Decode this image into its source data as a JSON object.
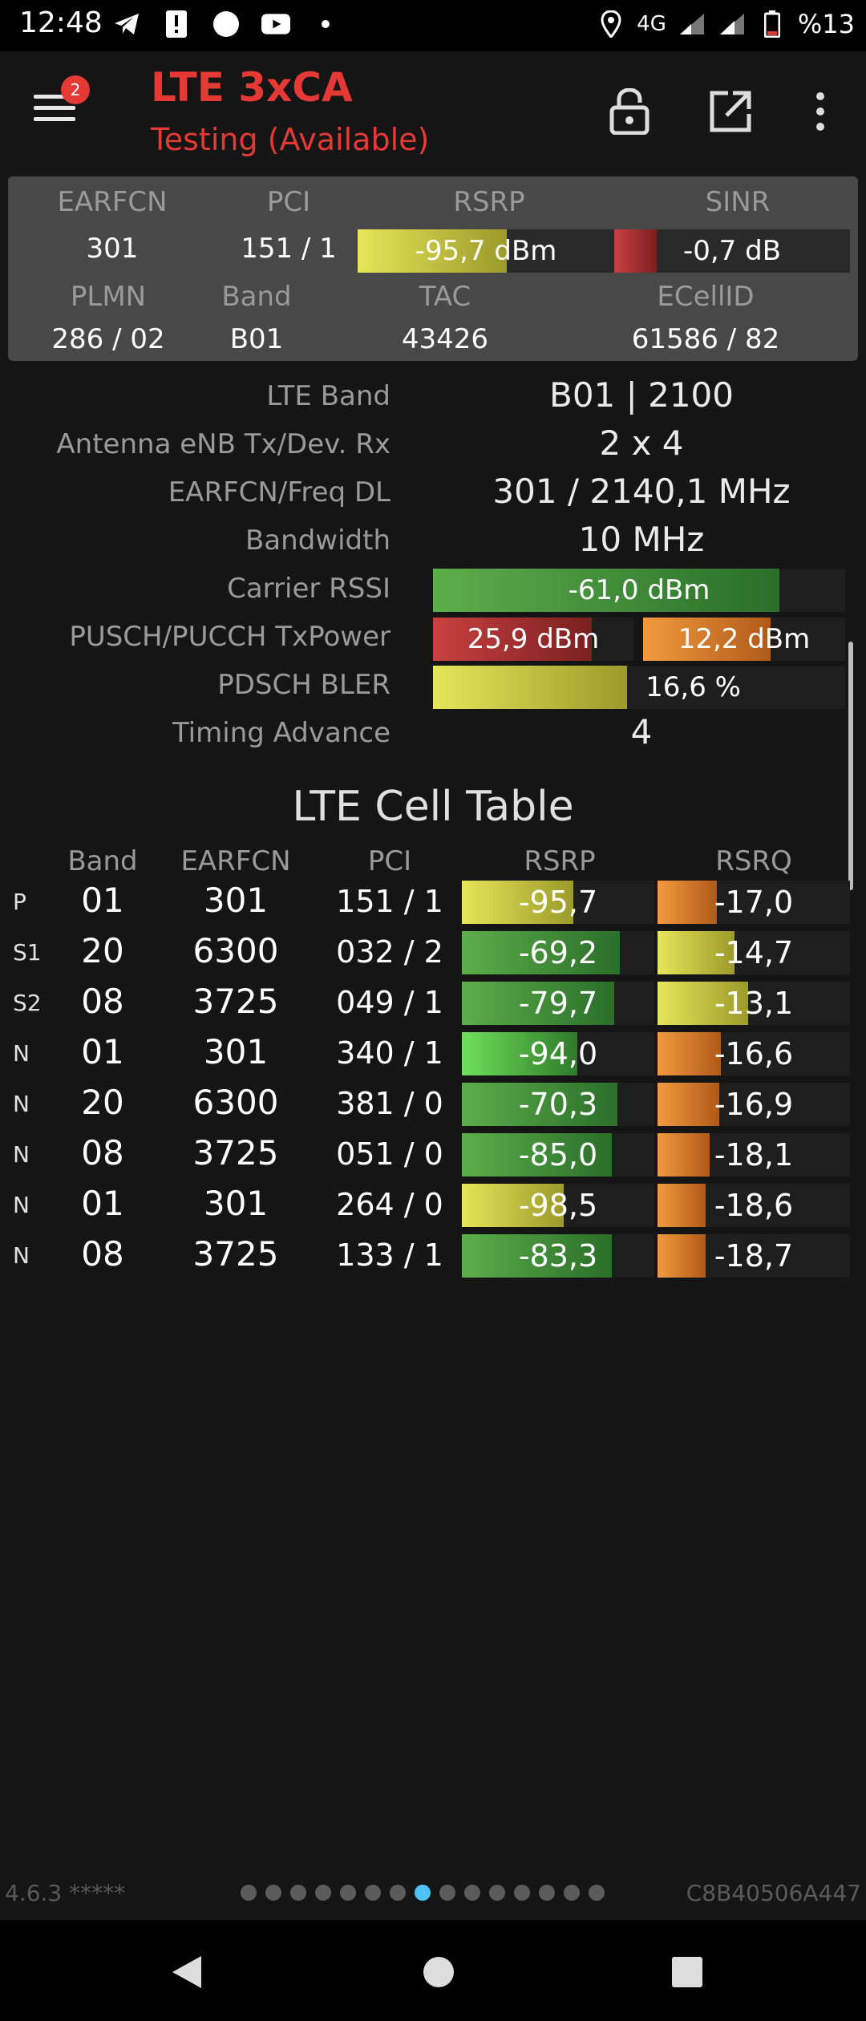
{
  "status_bar": {
    "time": "12:48",
    "network": "4G",
    "battery": "%13"
  },
  "app_bar": {
    "badge_count": "2",
    "title": "LTE 3xCA",
    "subtitle": "Testing (Available)"
  },
  "summary": {
    "headers": {
      "earfcn": "EARFCN",
      "pci": "PCI",
      "rsrp": "RSRP",
      "sinr": "SINR",
      "plmn": "PLMN",
      "band": "Band",
      "tac": "TAC",
      "ecellid": "ECellID"
    },
    "values": {
      "earfcn": "301",
      "pci": "151 / 1",
      "rsrp": "-95,7 dBm",
      "sinr": "-0,7 dB",
      "plmn": "286 / 02",
      "band": "B01",
      "tac": "43426",
      "ecellid": "61586 / 82"
    },
    "rsrp_level": 0.58,
    "sinr_level": 0.18
  },
  "details": {
    "lte_band": {
      "label": "LTE Band",
      "value": "B01 | 2100"
    },
    "antenna": {
      "label": "Antenna eNB Tx/Dev. Rx",
      "value": "2 x 4"
    },
    "earfcn_freq": {
      "label": "EARFCN/Freq DL",
      "value": "301 / 2140,1 MHz"
    },
    "bandwidth": {
      "label": "Bandwidth",
      "value": "10 MHz"
    },
    "carrier_rssi": {
      "label": "Carrier RSSI",
      "value": "-61,0 dBm",
      "level": 0.84
    },
    "txpower": {
      "label": "PUSCH/PUCCH TxPower",
      "pusch": "25,9 dBm",
      "pusch_level": 0.79,
      "pucch": "12,2 dBm",
      "pucch_level": 0.63
    },
    "pdsch_bler": {
      "label": "PDSCH BLER",
      "value": "16,6 %",
      "level": 0.47
    },
    "timing_advance": {
      "label": "Timing Advance",
      "value": "4"
    }
  },
  "cell_table": {
    "title": "LTE Cell Table",
    "headers": {
      "band": "Band",
      "earfcn": "EARFCN",
      "pci": "PCI",
      "rsrp": "RSRP",
      "rsrq": "RSRQ"
    },
    "rows": [
      {
        "type": "P",
        "band": "01",
        "earfcn": "301",
        "pci": "151 / 1",
        "rsrp": "-95,7",
        "rsrp_level": 0.58,
        "rsrp_color": "yellow",
        "rsrq": "-17,0",
        "rsrq_level": 0.31,
        "rsrq_color": "orange"
      },
      {
        "type": "S1",
        "band": "20",
        "earfcn": "6300",
        "pci": "032 / 2",
        "rsrp": "-69,2",
        "rsrp_level": 0.82,
        "rsrp_color": "green",
        "rsrq": "-14,7",
        "rsrq_level": 0.4,
        "rsrq_color": "yellow"
      },
      {
        "type": "S2",
        "band": "08",
        "earfcn": "3725",
        "pci": "049 / 1",
        "rsrp": "-79,7",
        "rsrp_level": 0.79,
        "rsrp_color": "green",
        "rsrq": "-13,1",
        "rsrq_level": 0.47,
        "rsrq_color": "yellow"
      },
      {
        "type": "N",
        "band": "01",
        "earfcn": "301",
        "pci": "340 / 1",
        "rsrp": "-94,0",
        "rsrp_level": 0.6,
        "rsrp_color": "lime",
        "rsrq": "-16,6",
        "rsrq_level": 0.33,
        "rsrq_color": "orange"
      },
      {
        "type": "N",
        "band": "20",
        "earfcn": "6300",
        "pci": "381 / 0",
        "rsrp": "-70,3",
        "rsrp_level": 0.81,
        "rsrp_color": "green",
        "rsrq": "-16,9",
        "rsrq_level": 0.32,
        "rsrq_color": "orange"
      },
      {
        "type": "N",
        "band": "08",
        "earfcn": "3725",
        "pci": "051 / 0",
        "rsrp": "-85,0",
        "rsrp_level": 0.78,
        "rsrp_color": "green",
        "rsrq": "-18,1",
        "rsrq_level": 0.27,
        "rsrq_color": "orange"
      },
      {
        "type": "N",
        "band": "01",
        "earfcn": "301",
        "pci": "264 / 0",
        "rsrp": "-98,5",
        "rsrp_level": 0.53,
        "rsrp_color": "yellow",
        "rsrq": "-18,6",
        "rsrq_level": 0.25,
        "rsrq_color": "orange"
      },
      {
        "type": "N",
        "band": "08",
        "earfcn": "3725",
        "pci": "133 / 1",
        "rsrp": "-83,3",
        "rsrp_level": 0.78,
        "rsrp_color": "green",
        "rsrq": "-18,7",
        "rsrq_level": 0.25,
        "rsrq_color": "orange"
      }
    ]
  },
  "footer": {
    "version": "4.6.3 *****",
    "device_id": "C8B40506A447",
    "page_count": 15,
    "active_page": 8
  },
  "colors": {
    "accent": "#e53935",
    "yellow": "linear-gradient(90deg,#e6e65a,#9c9a2a)",
    "green": "linear-gradient(90deg,#5cae4a,#2a6e2a)",
    "lime": "linear-gradient(90deg,#6ee05a,#2f7a2a)",
    "orange": "linear-gradient(90deg,#f29a3e,#b05a1a)",
    "red": "linear-gradient(90deg,#c94040,#7a2020)"
  }
}
